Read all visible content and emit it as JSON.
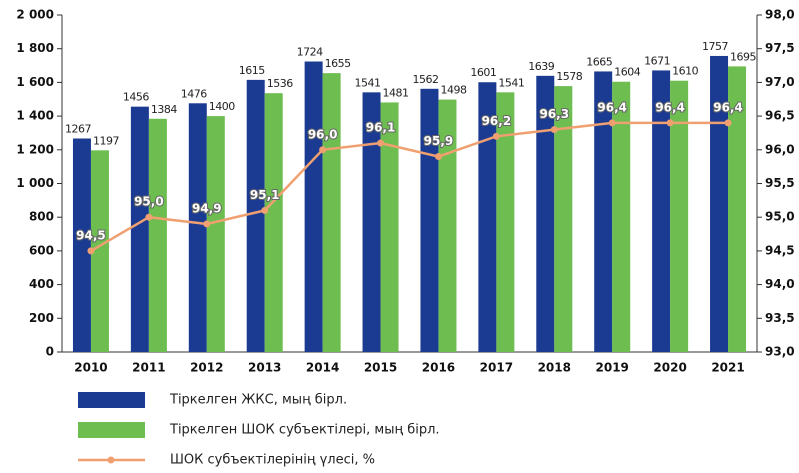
{
  "chart_data": {
    "type": "bar",
    "categories": [
      "2010",
      "2011",
      "2012",
      "2013",
      "2014",
      "2015",
      "2016",
      "2017",
      "2018",
      "2019",
      "2020",
      "2021"
    ],
    "series": [
      {
        "name": "Тіркелген ЖКС, мың бірл.",
        "color": "#1b3b92",
        "values": [
          1267,
          1456,
          1476,
          1615,
          1724,
          1541,
          1562,
          1601,
          1639,
          1665,
          1671,
          1757
        ]
      },
      {
        "name": "Тіркелген ШОК субъектілері, мың бірл.",
        "color": "#6dbd50",
        "values": [
          1197,
          1384,
          1400,
          1536,
          1655,
          1481,
          1498,
          1541,
          1578,
          1604,
          1610,
          1695
        ]
      },
      {
        "name": "ШОК субъектілерінің үлесі, %",
        "color": "#f0a070",
        "type": "line",
        "axis": "y2",
        "values": [
          94.5,
          95.0,
          94.9,
          95.1,
          96.0,
          96.1,
          95.9,
          96.2,
          96.3,
          96.4,
          96.4,
          96.4
        ],
        "value_labels": [
          "94,5",
          "95,0",
          "94,9",
          "95,1",
          "96,0",
          "96,1",
          "95,9",
          "96,2",
          "96,3",
          "96,4",
          "96,4",
          "96,4"
        ]
      }
    ],
    "ylim": [
      0,
      2000
    ],
    "yticks": [
      0,
      200,
      400,
      600,
      800,
      {
        "value": 1000,
        "label": "1 000"
      },
      {
        "value": 1200,
        "label": "1 200"
      },
      {
        "value": 1400,
        "label": "1 400"
      },
      {
        "value": 1600,
        "label": "1 600"
      },
      {
        "value": 1800,
        "label": "1 800"
      },
      {
        "value": 2000,
        "label": "2 000"
      }
    ],
    "y2lim": [
      93,
      98
    ],
    "y2ticks": [
      {
        "value": 93,
        "label": "93,0"
      },
      {
        "value": 93.5,
        "label": "93,5"
      },
      {
        "value": 94,
        "label": "94,0"
      },
      {
        "value": 94.5,
        "label": "94,5"
      },
      {
        "value": 95,
        "label": "95,0"
      },
      {
        "value": 95.5,
        "label": "95,5"
      },
      {
        "value": 96,
        "label": "96,0"
      },
      {
        "value": 96.5,
        "label": "96,5"
      },
      {
        "value": 97,
        "label": "97,0"
      },
      {
        "value": 97.5,
        "label": "97,5"
      },
      {
        "value": 98,
        "label": "98,0"
      }
    ],
    "legend": "bottom"
  }
}
